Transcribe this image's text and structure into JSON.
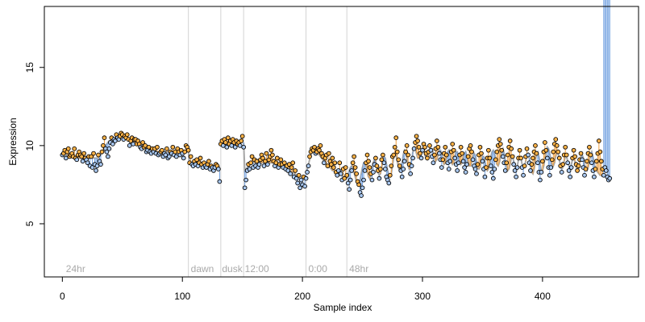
{
  "chart_data": {
    "type": "scatter",
    "title": "",
    "xlabel": "Sample index",
    "ylabel": "Expression",
    "xlim": [
      -15,
      480
    ],
    "ylim": [
      1.6,
      18.9
    ],
    "x_ticks": [
      0,
      100,
      200,
      300,
      400
    ],
    "y_ticks": [
      5,
      10,
      15
    ],
    "grid": false,
    "legend": "none",
    "phase_boundaries": [
      105,
      132,
      151,
      203,
      237
    ],
    "phase_labels": [
      {
        "x": 3,
        "text": "24hr"
      },
      {
        "x": 107,
        "text": "dawn"
      },
      {
        "x": 133,
        "text": "dusk"
      },
      {
        "x": 152,
        "text": "12:00"
      },
      {
        "x": 205,
        "text": "0:00"
      },
      {
        "x": 239,
        "text": "48hr"
      }
    ],
    "colors": {
      "point_high": "#ffb347",
      "point_low": "#a9c8f0",
      "segment_high": "#f0a040",
      "segment_low": "#6f9fe0",
      "fit_line": "#a9a9a9",
      "point_edge": "#000000",
      "phase_line": "#d3d3d3"
    },
    "series": [
      {
        "values": [
          9.4,
          9.5,
          9.7,
          9.2,
          9.6,
          9.8,
          9.3,
          9.4,
          9.5,
          9.3,
          9.8,
          9.2,
          9.1,
          9.4,
          9.6,
          9.4,
          9.3,
          9.0,
          9.5,
          9.2,
          9.1,
          8.9,
          9.3,
          8.7,
          9.3,
          8.6,
          9.5,
          8.8,
          8.4,
          8.7,
          9.4,
          9.0,
          8.8,
          9.6,
          10.0,
          10.5,
          9.8,
          9.6,
          9.3,
          9.8,
          10.2,
          10.5,
          10.1,
          10.4,
          10.3,
          10.7,
          10.5,
          10.4,
          10.6,
          10.8,
          10.7,
          10.4,
          10.6,
          10.5,
          10.7,
          10.4,
          10.0,
          10.3,
          10.5,
          10.1,
          10.4,
          10.4,
          10.1,
          10.3,
          10.1,
          9.9,
          9.8,
          10.2,
          9.9,
          10.0,
          9.6,
          9.7,
          9.9,
          9.6,
          9.5,
          9.8,
          9.6,
          9.8,
          9.5,
          9.9,
          9.4,
          9.5,
          9.6,
          9.7,
          9.3,
          9.5,
          9.4,
          9.8,
          9.2,
          9.3,
          9.6,
          9.5,
          9.9,
          9.4,
          9.6,
          9.3,
          9.8,
          9.6,
          9.4,
          9.7,
          9.5,
          9.2,
          9.6,
          10.0,
          9.9,
          9.7,
          8.9,
          9.3,
          8.8,
          8.7,
          9.0,
          8.8,
          9.1,
          8.7,
          8.9,
          9.2,
          8.8,
          8.6,
          8.9,
          8.7,
          8.6,
          8.8,
          9.0,
          8.5,
          8.7,
          8.6,
          8.4,
          8.6,
          8.8,
          8.7,
          8.5,
          7.7,
          10.1,
          10.3,
          10.0,
          10.4,
          10.2,
          9.9,
          10.5,
          10.1,
          10.3,
          10.0,
          10.4,
          10.2,
          9.9,
          10.3,
          10.1,
          10.2,
          10.0,
          10.3,
          10.6,
          9.9,
          7.3,
          7.8,
          8.4,
          8.8,
          8.5,
          8.9,
          9.3,
          8.6,
          9.1,
          8.7,
          9.0,
          8.6,
          8.8,
          9.1,
          9.4,
          9.2,
          8.7,
          9.0,
          9.5,
          8.8,
          9.1,
          9.3,
          9.7,
          9.4,
          9.0,
          8.7,
          8.9,
          9.2,
          8.6,
          8.8,
          9.1,
          8.8,
          8.6,
          8.9,
          8.5,
          8.7,
          8.4,
          8.8,
          8.2,
          8.6,
          8.9,
          8.0,
          8.4,
          7.9,
          7.6,
          8.1,
          7.3,
          7.8,
          7.5,
          8.0,
          7.4,
          7.9,
          8.3,
          8.7,
          9.3,
          9.6,
          9.8,
          9.7,
          9.9,
          9.5,
          9.6,
          9.8,
          9.7,
          10.0,
          9.5,
          9.3,
          8.9,
          9.2,
          9.4,
          8.7,
          9.5,
          9.0,
          8.8,
          9.2,
          8.6,
          8.9,
          8.3,
          8.1,
          8.4,
          8.9,
          8.2,
          7.8,
          8.5,
          7.9,
          8.6,
          8.1,
          7.6,
          7.2,
          7.8,
          8.4,
          8.9,
          9.3,
          8.6,
          8.2,
          7.7,
          7.5,
          7.0,
          6.8,
          7.3,
          7.8,
          8.4,
          8.9,
          9.4,
          9.0,
          8.6,
          8.2,
          7.8,
          8.3,
          8.8,
          9.2,
          8.7,
          8.4,
          7.9,
          8.5,
          9.1,
          9.4,
          8.9,
          8.5,
          8.0,
          7.8,
          7.6,
          8.1,
          8.7,
          9.3,
          9.4,
          9.9,
          10.5,
          9.6,
          9.1,
          8.7,
          8.4,
          8.0,
          8.5,
          9.0,
          9.6,
          10.0,
          9.4,
          8.8,
          8.2,
          8.7,
          9.2,
          9.8,
          10.2,
          10.6,
          10.3,
          9.9,
          9.5,
          9.2,
          9.7,
          10.1,
          9.9,
          9.5,
          9.2,
          9.6,
          10.0,
          9.7,
          9.3,
          8.9,
          9.4,
          9.8,
          10.3,
          9.9,
          9.5,
          9.1,
          8.6,
          9.1,
          9.5,
          9.9,
          9.4,
          8.9,
          8.5,
          9.0,
          9.6,
          10.1,
          9.7,
          9.2,
          8.8,
          8.4,
          8.9,
          9.4,
          9.9,
          9.5,
          9.0,
          8.6,
          8.3,
          8.8,
          9.3,
          9.8,
          10.0,
          9.6,
          9.1,
          8.7,
          8.5,
          8.2,
          8.8,
          9.4,
          9.9,
          9.5,
          9.0,
          8.5,
          8.0,
          8.6,
          9.2,
          9.7,
          9.2,
          8.7,
          8.3,
          7.9,
          8.5,
          9.1,
          9.6,
          10.0,
          10.4,
          10.1,
          9.7,
          9.3,
          8.9,
          8.4,
          8.9,
          9.4,
          9.9,
          10.3,
          9.8,
          9.3,
          8.8,
          8.4,
          8.0,
          8.6,
          9.2,
          9.7,
          9.2,
          8.6,
          8.1,
          8.7,
          9.3,
          9.8,
          9.4,
          8.9,
          8.4,
          8.8,
          9.2,
          9.6,
          10.0,
          9.5,
          8.9,
          8.3,
          7.8,
          8.3,
          9.0,
          9.6,
          10.2,
          9.7,
          9.2,
          8.6,
          8.1,
          8.6,
          9.1,
          9.6,
          10.1,
          10.4,
          10.0,
          9.6,
          9.2,
          8.7,
          8.3,
          8.8,
          9.4,
          9.9,
          9.4,
          8.9,
          8.4,
          8.0,
          8.6,
          9.2,
          9.7,
          9.3,
          8.8,
          8.4,
          8.7,
          9.1,
          9.5,
          9.1,
          8.6,
          8.1,
          8.5,
          9.0,
          9.5,
          9.9,
          9.4,
          8.9,
          8.4,
          8.0,
          8.5,
          9.0,
          9.5,
          10.3,
          9.6,
          9.0,
          8.5,
          8.1,
          8.6,
          8.4,
          8.0,
          7.8,
          7.9
        ]
      },
      {
        "values": [
          9.5,
          9.5,
          9.5,
          9.4,
          9.4,
          9.4,
          9.3,
          9.3,
          9.3,
          9.3,
          9.2,
          9.2,
          9.2,
          9.2,
          9.2,
          9.2,
          9.2,
          9.2,
          9.2,
          9.2,
          9.2,
          9.2,
          9.2,
          9.2,
          9.2,
          9.2,
          9.2,
          9.2,
          9.2,
          9.2,
          9.2,
          9.3,
          9.4,
          9.5,
          9.7,
          9.9,
          10.0,
          10.1,
          10.2,
          10.3,
          10.3,
          10.4,
          10.4,
          10.5,
          10.5,
          10.5,
          10.6,
          10.6,
          10.6,
          10.6,
          10.6,
          10.6,
          10.5,
          10.5,
          10.5,
          10.4,
          10.4,
          10.3,
          10.3,
          10.2,
          10.2,
          10.1,
          10.1,
          10.1,
          10.0,
          10.0,
          10.0,
          9.9,
          9.9,
          9.9,
          9.8,
          9.8,
          9.8,
          9.8,
          9.7,
          9.7,
          9.7,
          9.7,
          9.7,
          9.6,
          9.6,
          9.6,
          9.6,
          9.6,
          9.6,
          9.6,
          9.6,
          9.6,
          9.6,
          9.6,
          9.6,
          9.6,
          9.6,
          9.6,
          9.6,
          9.6,
          9.6,
          9.6,
          9.6,
          9.6,
          9.6,
          9.6,
          9.6,
          9.6,
          9.6,
          9.6,
          8.9,
          8.9,
          8.9,
          8.9,
          8.9,
          8.9,
          8.9,
          8.8,
          8.8,
          8.8,
          8.8,
          8.8,
          8.8,
          8.8,
          8.8,
          8.8,
          8.7,
          8.7,
          8.7,
          8.7,
          8.7,
          8.7,
          8.7,
          8.7,
          8.7,
          8.6,
          10.1,
          10.1,
          10.1,
          10.1,
          10.1,
          10.1,
          10.1,
          10.1,
          10.1,
          10.1,
          10.1,
          10.1,
          10.1,
          10.1,
          10.1,
          10.1,
          10.2,
          10.2,
          10.2,
          10.2,
          8.4,
          8.5,
          8.6,
          8.7,
          8.8,
          8.8,
          8.9,
          8.9,
          8.9,
          8.9,
          8.9,
          8.9,
          8.9,
          8.9,
          8.9,
          8.9,
          8.9,
          8.9,
          8.9,
          8.9,
          8.9,
          8.9,
          8.9,
          8.9,
          8.9,
          8.9,
          8.9,
          8.8,
          8.8,
          8.8,
          8.7,
          8.7,
          8.7,
          8.6,
          8.6,
          8.5,
          8.5,
          8.4,
          8.4,
          8.3,
          8.3,
          8.2,
          8.2,
          8.1,
          8.0,
          8.0,
          7.9,
          7.9,
          7.9,
          7.9,
          8.0,
          8.2,
          8.5,
          8.8,
          9.1,
          9.4,
          9.6,
          9.7,
          9.7,
          9.7,
          9.6,
          9.5,
          9.4,
          9.3,
          9.2,
          9.1,
          9.0,
          8.9,
          8.8,
          8.7,
          8.6,
          8.6,
          8.5,
          8.4,
          8.4,
          8.3,
          8.3,
          8.4,
          8.5,
          8.5,
          8.4,
          8.2,
          8.0,
          7.9,
          7.8,
          7.9,
          8.1,
          8.4,
          8.6,
          8.7,
          8.6,
          8.3,
          8.0,
          7.7,
          7.5,
          7.5,
          7.8,
          8.2,
          8.6,
          8.9,
          8.9,
          8.7,
          8.3,
          8.0,
          7.9,
          8.1,
          8.5,
          8.9,
          9.1,
          9.0,
          8.7,
          8.3,
          8.1,
          8.2,
          8.6,
          9.0,
          9.3,
          9.2,
          8.8,
          8.4,
          8.1,
          8.0,
          8.2,
          8.7,
          9.2,
          9.5,
          9.4,
          9.0,
          8.6,
          8.4,
          8.5,
          8.9,
          9.4,
          9.7,
          9.6,
          9.2,
          8.7,
          8.5,
          8.7,
          9.1,
          9.6,
          9.9,
          9.8,
          9.5,
          9.2,
          9.2,
          9.4,
          9.7,
          9.8,
          9.7,
          9.4,
          9.2,
          9.1,
          9.3,
          9.6,
          9.8,
          9.8,
          9.5,
          9.2,
          9.0,
          9.1,
          9.4,
          9.7,
          9.7,
          9.4,
          9.0,
          8.8,
          8.9,
          9.2,
          9.6,
          9.7,
          9.4,
          9.0,
          8.8,
          8.9,
          9.3,
          9.6,
          9.6,
          9.3,
          9.0,
          8.8,
          8.9,
          9.2,
          9.5,
          9.6,
          9.3,
          9.0,
          8.7,
          8.7,
          8.9,
          9.3,
          9.5,
          9.4,
          9.0,
          8.6,
          8.5,
          8.6,
          9.0,
          9.3,
          9.3,
          9.0,
          8.6,
          8.4,
          8.5,
          8.9,
          9.3,
          9.6,
          9.7,
          9.5,
          9.1,
          8.8,
          8.7,
          8.9,
          9.3,
          9.6,
          9.8,
          9.5,
          9.1,
          8.7,
          8.4,
          8.5,
          8.8,
          9.2,
          9.3,
          9.0,
          8.6,
          8.5,
          8.7,
          9.1,
          9.3,
          9.2,
          8.8,
          8.6,
          8.7,
          9.0,
          9.4,
          9.5,
          9.2,
          8.7,
          8.3,
          8.2,
          8.5,
          9.0,
          9.5,
          9.6,
          9.3,
          8.8,
          8.4,
          8.4,
          8.7,
          9.2,
          9.6,
          9.9,
          9.8,
          9.5,
          9.1,
          8.8,
          8.7,
          8.9,
          9.3,
          9.6,
          9.5,
          9.1,
          8.7,
          8.5,
          8.6,
          9.0,
          9.3,
          9.3,
          9.0,
          8.7,
          8.6,
          8.8,
          9.1,
          9.2,
          9.0,
          8.6,
          8.4,
          8.5,
          8.9,
          9.3,
          9.4,
          9.2,
          8.8,
          8.5,
          8.4,
          8.6,
          9.0,
          9.4,
          9.6,
          9.3,
          8.9,
          8.5,
          8.4,
          8.3,
          8.2,
          8.1,
          8.1,
          8.0
        ]
      }
    ]
  }
}
